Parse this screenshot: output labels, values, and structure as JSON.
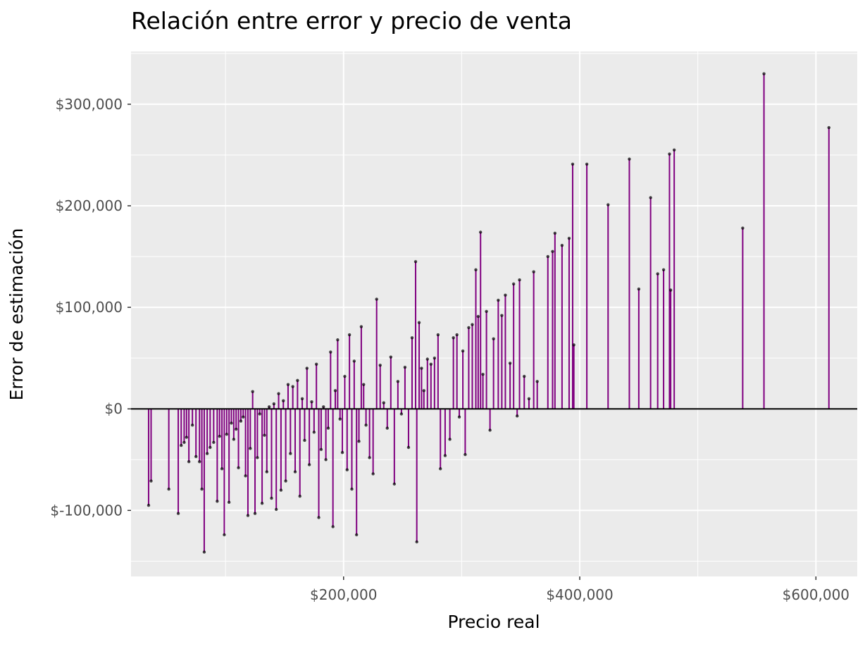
{
  "chart_data": {
    "type": "scatter",
    "title": "Relación entre error y precio de venta",
    "xlabel": "Precio real",
    "ylabel": "Error de estimación",
    "xlim": [
      20000,
      635000
    ],
    "ylim": [
      -165000,
      352000
    ],
    "x_ticks": [
      {
        "value": 200000,
        "label": "$200,000"
      },
      {
        "value": 400000,
        "label": "$400,000"
      },
      {
        "value": 600000,
        "label": "$600,000"
      }
    ],
    "y_ticks": [
      {
        "value": -100000,
        "label": "$-100,000"
      },
      {
        "value": 0,
        "label": "$0"
      },
      {
        "value": 100000,
        "label": "$100,000"
      },
      {
        "value": 200000,
        "label": "$200,000"
      },
      {
        "value": 300000,
        "label": "$300,000"
      }
    ],
    "grid": true,
    "reference_line": 0,
    "colors": {
      "segment": "#800080",
      "point": "#000000",
      "panel": "#ebebeb",
      "grid": "#ffffff",
      "zero_line": "#000000"
    },
    "points": [
      [
        34900,
        -95000
      ],
      [
        37000,
        -71000
      ],
      [
        52000,
        -79000
      ],
      [
        60000,
        -103000
      ],
      [
        62500,
        -36000
      ],
      [
        65000,
        -33000
      ],
      [
        67000,
        -28000
      ],
      [
        69000,
        -52000
      ],
      [
        72000,
        -16000
      ],
      [
        75000,
        -47000
      ],
      [
        78000,
        -52000
      ],
      [
        80000,
        -79000
      ],
      [
        82000,
        -141000
      ],
      [
        84500,
        -44000
      ],
      [
        87000,
        -38000
      ],
      [
        90000,
        -33000
      ],
      [
        93000,
        -91000
      ],
      [
        95000,
        -27000
      ],
      [
        97000,
        -59000
      ],
      [
        99000,
        -124000
      ],
      [
        101000,
        -25000
      ],
      [
        103000,
        -92000
      ],
      [
        105000,
        -14000
      ],
      [
        107000,
        -30000
      ],
      [
        109000,
        -20000
      ],
      [
        111000,
        -58000
      ],
      [
        113000,
        -12000
      ],
      [
        115000,
        -8000
      ],
      [
        117000,
        -66000
      ],
      [
        119000,
        -105000
      ],
      [
        121000,
        -39000
      ],
      [
        123000,
        17000
      ],
      [
        125000,
        -103000
      ],
      [
        127000,
        -48000
      ],
      [
        129000,
        -5000
      ],
      [
        131000,
        -93000
      ],
      [
        133000,
        -26000
      ],
      [
        135000,
        -62000
      ],
      [
        137000,
        2000
      ],
      [
        139000,
        -88000
      ],
      [
        141000,
        5000
      ],
      [
        143000,
        -99000
      ],
      [
        145000,
        15000
      ],
      [
        147000,
        -80000
      ],
      [
        149000,
        8000
      ],
      [
        151000,
        -71000
      ],
      [
        153000,
        24000
      ],
      [
        155000,
        -44000
      ],
      [
        157000,
        22000
      ],
      [
        159000,
        -62000
      ],
      [
        161000,
        28000
      ],
      [
        163000,
        -86000
      ],
      [
        165000,
        10000
      ],
      [
        167000,
        -31000
      ],
      [
        169000,
        40000
      ],
      [
        171000,
        -55000
      ],
      [
        173000,
        7000
      ],
      [
        175000,
        -23000
      ],
      [
        177000,
        44000
      ],
      [
        179000,
        -107000
      ],
      [
        181000,
        -40000
      ],
      [
        183000,
        2000
      ],
      [
        185000,
        -50000
      ],
      [
        187000,
        -19000
      ],
      [
        189000,
        56000
      ],
      [
        191000,
        -116000
      ],
      [
        193000,
        18000
      ],
      [
        195000,
        68000
      ],
      [
        197000,
        -10000
      ],
      [
        199000,
        -43000
      ],
      [
        201000,
        32000
      ],
      [
        203000,
        -60000
      ],
      [
        205000,
        73000
      ],
      [
        207000,
        -79000
      ],
      [
        209000,
        47000
      ],
      [
        211000,
        -124000
      ],
      [
        213000,
        -32000
      ],
      [
        215000,
        81000
      ],
      [
        217000,
        24000
      ],
      [
        219000,
        -16000
      ],
      [
        222000,
        -48000
      ],
      [
        225000,
        -64000
      ],
      [
        228000,
        108000
      ],
      [
        231000,
        43000
      ],
      [
        234000,
        6000
      ],
      [
        237000,
        -19000
      ],
      [
        240000,
        51000
      ],
      [
        243000,
        -74000
      ],
      [
        246000,
        27000
      ],
      [
        249000,
        -5000
      ],
      [
        252000,
        41000
      ],
      [
        255000,
        -38000
      ],
      [
        258000,
        70000
      ],
      [
        261000,
        145000
      ],
      [
        262000,
        -131000
      ],
      [
        264000,
        85000
      ],
      [
        266000,
        40000
      ],
      [
        268000,
        18000
      ],
      [
        271000,
        49000
      ],
      [
        274000,
        44000
      ],
      [
        277000,
        50000
      ],
      [
        280000,
        73000
      ],
      [
        282000,
        -59000
      ],
      [
        286000,
        -46000
      ],
      [
        290000,
        -30000
      ],
      [
        293000,
        70000
      ],
      [
        296000,
        73000
      ],
      [
        298000,
        -8000
      ],
      [
        301000,
        57000
      ],
      [
        303000,
        -45000
      ],
      [
        306000,
        80000
      ],
      [
        309000,
        83000
      ],
      [
        312000,
        137000
      ],
      [
        314000,
        91000
      ],
      [
        316000,
        174000
      ],
      [
        318000,
        34000
      ],
      [
        321000,
        96000
      ],
      [
        324000,
        -21000
      ],
      [
        327000,
        69000
      ],
      [
        331000,
        107000
      ],
      [
        334000,
        92000
      ],
      [
        337000,
        112000
      ],
      [
        341000,
        45000
      ],
      [
        344000,
        123000
      ],
      [
        347000,
        -7000
      ],
      [
        349000,
        127000
      ],
      [
        353000,
        32000
      ],
      [
        357000,
        10000
      ],
      [
        361000,
        135000
      ],
      [
        364000,
        27000
      ],
      [
        373000,
        150000
      ],
      [
        377000,
        155000
      ],
      [
        379000,
        173000
      ],
      [
        385000,
        161000
      ],
      [
        391000,
        168000
      ],
      [
        394000,
        241000
      ],
      [
        395000,
        63000
      ],
      [
        406000,
        241000
      ],
      [
        424000,
        201000
      ],
      [
        442000,
        246000
      ],
      [
        450000,
        118000
      ],
      [
        460000,
        208000
      ],
      [
        466000,
        133000
      ],
      [
        471000,
        137000
      ],
      [
        476000,
        251000
      ],
      [
        477000,
        117000
      ],
      [
        480000,
        255000
      ],
      [
        538000,
        178000
      ],
      [
        556000,
        330000
      ],
      [
        611000,
        277000
      ]
    ]
  }
}
